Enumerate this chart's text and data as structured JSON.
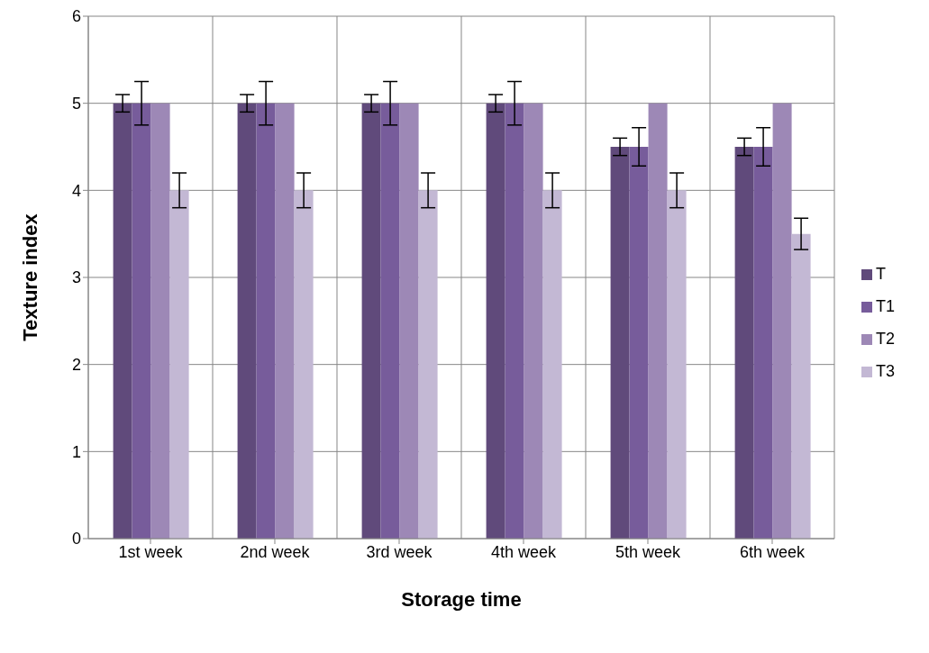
{
  "chart_data": {
    "type": "bar",
    "xlabel": "Storage time",
    "ylabel": "Texture index",
    "categories": [
      "1st week",
      "2nd week",
      "3rd week",
      "4th week",
      "5th week",
      "6th week"
    ],
    "series": [
      {
        "name": "T",
        "color": "#604a7b",
        "values": [
          5,
          5,
          5,
          5,
          4.5,
          4.5
        ],
        "errors": [
          0.1,
          0.1,
          0.1,
          0.1,
          0.1,
          0.1
        ]
      },
      {
        "name": "T1",
        "color": "#775c9b",
        "values": [
          5,
          5,
          5,
          5,
          4.5,
          4.5
        ],
        "errors": [
          0.25,
          0.25,
          0.25,
          0.25,
          0.22,
          0.22
        ]
      },
      {
        "name": "T2",
        "color": "#9d88b6",
        "values": [
          5,
          5,
          5,
          5,
          5,
          5
        ]
      },
      {
        "name": "T3",
        "color": "#c3b8d4",
        "values": [
          4,
          4,
          4,
          4,
          4,
          3.5
        ],
        "errors": [
          0.2,
          0.2,
          0.2,
          0.2,
          0.2,
          0.18
        ]
      }
    ],
    "ylim": [
      0,
      6
    ],
    "yticks": [
      0,
      1,
      2,
      3,
      4,
      5,
      6
    ],
    "grid": true,
    "legend": "right"
  }
}
